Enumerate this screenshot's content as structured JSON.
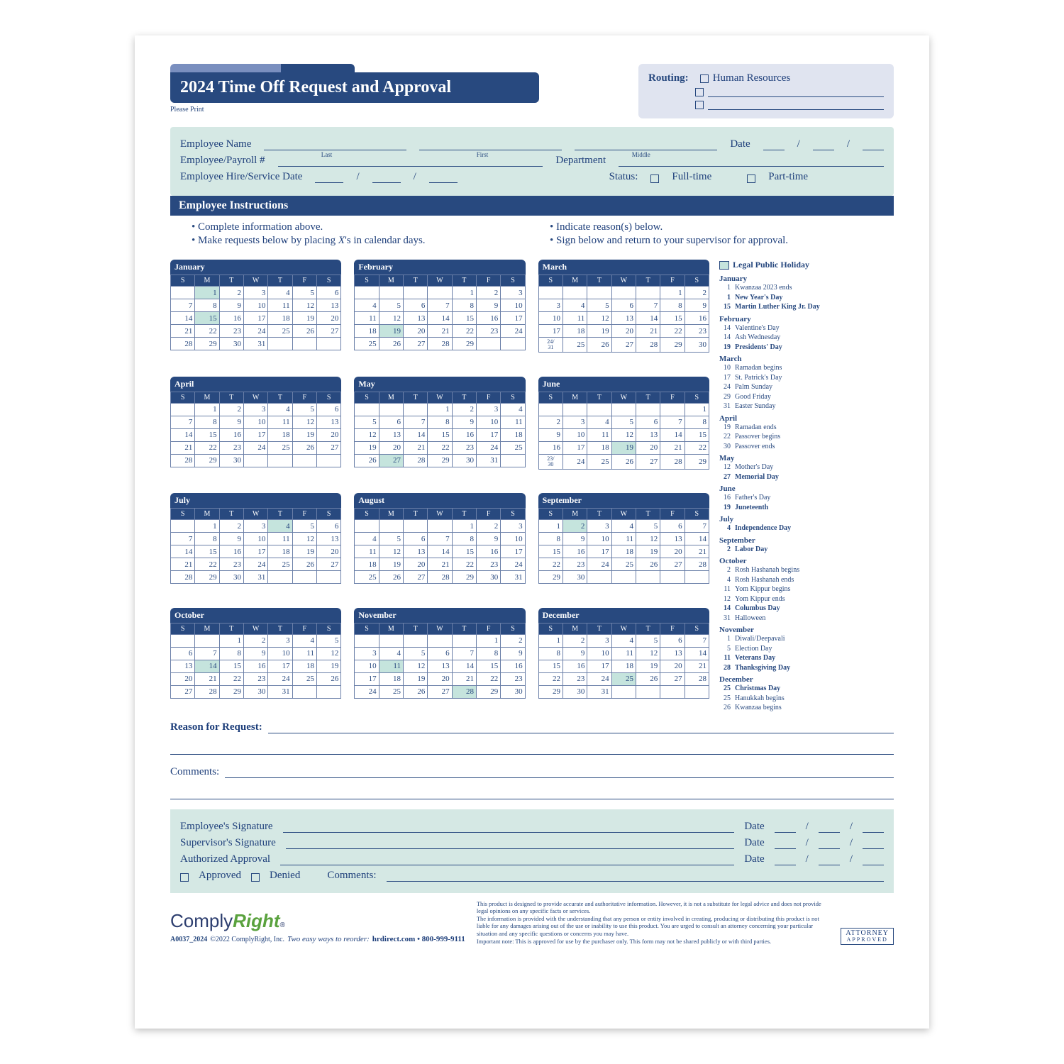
{
  "colors": {
    "navy": "#28497f",
    "mint": "#d5e8e4",
    "lav": "#e0e4f0",
    "hol": "#c5e4dd",
    "border": "#6a7fa8",
    "text": "#1d3e7a"
  },
  "title": "2024 Time Off Request and Approval",
  "please_print": "Please Print",
  "routing": {
    "label": "Routing:",
    "opt1": "Human Resources"
  },
  "emp": {
    "name": "Employee Name",
    "last": "Last",
    "first": "First",
    "middle": "Middle",
    "date": "Date",
    "payroll": "Employee/Payroll #",
    "dept": "Department",
    "hire": "Employee Hire/Service Date",
    "status": "Status:",
    "ft": "Full-time",
    "pt": "Part-time"
  },
  "instr": {
    "head": "Employee Instructions",
    "l1": "Complete information above.",
    "l2": "Make requests below by placing ",
    "l2x": "X",
    "l2b": "'s in calendar days.",
    "r1": "Indicate reason(s) below.",
    "r2": "Sign below and return to your supervisor for approval."
  },
  "day_headers": [
    "S",
    "M",
    "T",
    "W",
    "T",
    "F",
    "S"
  ],
  "months": [
    {
      "name": "January",
      "start": 1,
      "days": 31,
      "holidays": [
        1,
        15
      ]
    },
    {
      "name": "February",
      "start": 4,
      "days": 29,
      "holidays": [
        19
      ]
    },
    {
      "name": "March",
      "start": 5,
      "days": 31,
      "holidays": [],
      "split_last": true
    },
    {
      "name": "April",
      "start": 1,
      "days": 30,
      "holidays": []
    },
    {
      "name": "May",
      "start": 3,
      "days": 31,
      "holidays": [
        27
      ]
    },
    {
      "name": "June",
      "start": 6,
      "days": 30,
      "holidays": [
        19
      ],
      "split_last": true
    },
    {
      "name": "July",
      "start": 1,
      "days": 31,
      "holidays": [
        4
      ]
    },
    {
      "name": "August",
      "start": 4,
      "days": 31,
      "holidays": []
    },
    {
      "name": "September",
      "start": 0,
      "days": 30,
      "holidays": [
        2
      ]
    },
    {
      "name": "October",
      "start": 2,
      "days": 31,
      "holidays": [
        14
      ]
    },
    {
      "name": "November",
      "start": 5,
      "days": 30,
      "holidays": [
        11,
        28
      ]
    },
    {
      "name": "December",
      "start": 0,
      "days": 31,
      "holidays": [
        25
      ]
    }
  ],
  "legend_title": "Legal Public Holiday",
  "holidays_list": [
    {
      "m": "January",
      "d": [
        [
          "1",
          "Kwanzaa 2023 ends",
          0
        ],
        [
          "1",
          "New Year's Day",
          1
        ],
        [
          "15",
          "Martin Luther King Jr. Day",
          1
        ]
      ]
    },
    {
      "m": "February",
      "d": [
        [
          "14",
          "Valentine's Day",
          0
        ],
        [
          "14",
          "Ash Wednesday",
          0
        ],
        [
          "19",
          "Presidents' Day",
          1
        ]
      ]
    },
    {
      "m": "March",
      "d": [
        [
          "10",
          "Ramadan begins",
          0
        ],
        [
          "17",
          "St. Patrick's Day",
          0
        ],
        [
          "24",
          "Palm Sunday",
          0
        ],
        [
          "29",
          "Good Friday",
          0
        ],
        [
          "31",
          "Easter Sunday",
          0
        ]
      ]
    },
    {
      "m": "April",
      "d": [
        [
          "19",
          "Ramadan ends",
          0
        ],
        [
          "22",
          "Passover begins",
          0
        ],
        [
          "30",
          "Passover ends",
          0
        ]
      ]
    },
    {
      "m": "May",
      "d": [
        [
          "12",
          "Mother's Day",
          0
        ],
        [
          "27",
          "Memorial Day",
          1
        ]
      ]
    },
    {
      "m": "June",
      "d": [
        [
          "16",
          "Father's Day",
          0
        ],
        [
          "19",
          "Juneteenth",
          1
        ]
      ]
    },
    {
      "m": "July",
      "d": [
        [
          "4",
          "Independence Day",
          1
        ]
      ]
    },
    {
      "m": "September",
      "d": [
        [
          "2",
          "Labor Day",
          1
        ]
      ]
    },
    {
      "m": "October",
      "d": [
        [
          "2",
          "Rosh Hashanah begins",
          0
        ],
        [
          "4",
          "Rosh Hashanah ends",
          0
        ],
        [
          "11",
          "Yom Kippur begins",
          0
        ],
        [
          "12",
          "Yom Kippur ends",
          0
        ],
        [
          "14",
          "Columbus Day",
          1
        ],
        [
          "31",
          "Halloween",
          0
        ]
      ]
    },
    {
      "m": "November",
      "d": [
        [
          "1",
          "Diwali/Deepavali",
          0
        ],
        [
          "5",
          "Election Day",
          0
        ],
        [
          "11",
          "Veterans Day",
          1
        ],
        [
          "28",
          "Thanksgiving Day",
          1
        ]
      ]
    },
    {
      "m": "December",
      "d": [
        [
          "25",
          "Christmas Day",
          1
        ],
        [
          "25",
          "Hanukkah begins",
          0
        ],
        [
          "26",
          "Kwanzaa begins",
          0
        ]
      ]
    }
  ],
  "reason": "Reason for Request:",
  "comments": "Comments:",
  "sig": {
    "emp": "Employee's Signature",
    "sup": "Supervisor's Signature",
    "auth": "Authorized Approval",
    "date": "Date",
    "approved": "Approved",
    "denied": "Denied",
    "com": "Comments:"
  },
  "footer": {
    "sku": "A0037_2024",
    "copy": "©2022 ComplyRight, Inc.",
    "reorder": "Two easy ways to reorder:",
    "contact": "hrdirect.com • 800-999-9111",
    "fine1": "This product is designed to provide accurate and authoritative information. However, it is not a substitute for legal advice and does not provide legal opinions on any specific facts or services.",
    "fine2": "The information is provided with the understanding that any person or entity involved in creating, producing or distributing this product is not liable for any damages arising out of the use or inability to use this product. You are urged to consult an attorney concerning your particular situation and any specific questions or concerns you may have.",
    "fine3": "Important note: This is approved for use by the purchaser only. This form may not be shared publicly or with third parties.",
    "attorney1": "ATTORNEY",
    "attorney2": "APPROVED",
    "logo1": "Comply",
    "logo2": "Right"
  }
}
